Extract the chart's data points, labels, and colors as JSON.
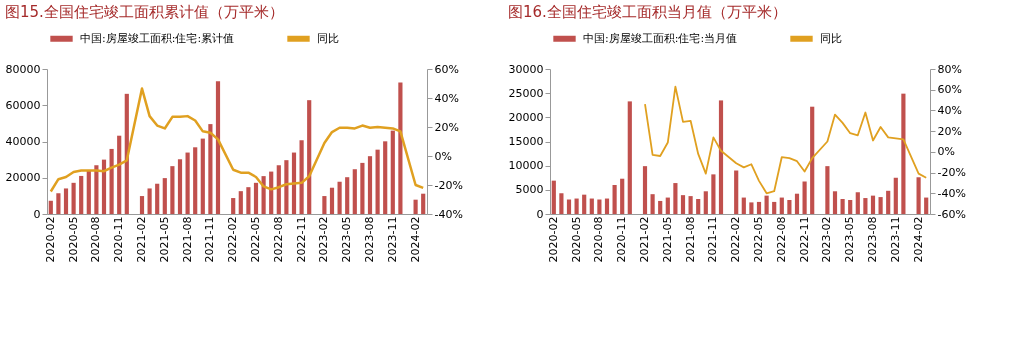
{
  "chart_data": [
    {
      "type": "bar",
      "title": "图15.全国住宅竣工面积累计值（万平米）",
      "categories": [
        "2020-02",
        null,
        null,
        "2020-05",
        null,
        null,
        "2020-08",
        null,
        null,
        "2020-11",
        null,
        null,
        "2021-02",
        null,
        null,
        "2021-05",
        null,
        null,
        "2021-08",
        null,
        null,
        "2021-11",
        null,
        null,
        "2022-02",
        null,
        null,
        "2022-05",
        null,
        null,
        "2022-08",
        null,
        null,
        "2022-11",
        null,
        null,
        "2023-02",
        null,
        null,
        "2023-05",
        null,
        null,
        "2023-08",
        null,
        null,
        "2023-11",
        null,
        null,
        "2024-02",
        null
      ],
      "series": [
        {
          "name": "中国:房屋竣工面积:住宅:累计值",
          "color": "#c0504d",
          "values": [
            7300,
            11400,
            14100,
            17200,
            21000,
            23800,
            26900,
            30000,
            35900,
            43200,
            66300,
            null,
            9900,
            14100,
            16700,
            19800,
            26400,
            30200,
            33900,
            36800,
            41600,
            49600,
            73300,
            null,
            8800,
            12600,
            14800,
            17200,
            20900,
            23400,
            26900,
            29700,
            33900,
            40700,
            62800,
            null,
            9900,
            14500,
            17800,
            20300,
            24700,
            28200,
            31900,
            35500,
            40100,
            46000,
            72500,
            null,
            7900,
            11200
          ]
        },
        {
          "name": "同比",
          "type": "line",
          "axis": "y2",
          "color": "#e0a020",
          "values": [
            -24.5,
            -16,
            -14.5,
            -11,
            -10,
            -10,
            -10,
            -10.5,
            -8,
            -6,
            -3,
            null,
            46.5,
            27.5,
            21,
            19,
            27,
            27,
            27.5,
            24.5,
            17,
            16,
            11.5,
            null,
            -9.5,
            -11.5,
            -11.5,
            -14.5,
            -21,
            -23,
            -21.5,
            -19.5,
            -19,
            -18.5,
            -14,
            null,
            9,
            16.5,
            19.5,
            19.5,
            19,
            21,
            19.5,
            20,
            19.5,
            19,
            17,
            null,
            -20,
            -22
          ]
        }
      ],
      "ylim": [
        0,
        80000
      ],
      "yticks": [
        0,
        20000,
        40000,
        60000,
        80000
      ],
      "y2lim": [
        -40,
        60
      ],
      "y2ticks": [
        {
          "value": -40,
          "label": "-40%"
        },
        {
          "value": -20,
          "label": "-20%"
        },
        {
          "value": 0,
          "label": "0%"
        },
        {
          "value": 20,
          "label": "20%"
        },
        {
          "value": 40,
          "label": "40%"
        },
        {
          "value": 60,
          "label": "60%"
        }
      ],
      "legend": "top",
      "grid": false
    },
    {
      "type": "bar",
      "title": "图16.全国住宅竣工面积当月值（万平米）",
      "categories": [
        "2020-02",
        null,
        null,
        "2020-05",
        null,
        null,
        "2020-08",
        null,
        null,
        "2020-11",
        null,
        null,
        "2021-02",
        null,
        null,
        "2021-05",
        null,
        null,
        "2021-08",
        null,
        null,
        "2021-11",
        null,
        null,
        "2022-02",
        null,
        null,
        "2022-05",
        null,
        null,
        "2022-08",
        null,
        null,
        "2022-11",
        null,
        null,
        "2023-02",
        null,
        null,
        "2023-05",
        null,
        null,
        "2023-08",
        null,
        null,
        "2023-11",
        null,
        null,
        "2024-02",
        null
      ],
      "series": [
        {
          "name": "中国:房屋竣工面积:住宅:当月值",
          "color": "#c0504d",
          "values": [
            6900,
            4300,
            3000,
            3200,
            4000,
            3200,
            3000,
            3200,
            6000,
            7300,
            23300,
            null,
            9900,
            4100,
            2700,
            3400,
            6400,
            3900,
            3700,
            3100,
            4700,
            8200,
            23500,
            null,
            9000,
            3400,
            2400,
            2500,
            3800,
            2500,
            3400,
            2900,
            4200,
            6700,
            22200,
            null,
            9900,
            4700,
            3100,
            2900,
            4500,
            3300,
            3800,
            3500,
            4800,
            7500,
            24900,
            null,
            7600,
            3400
          ]
        },
        {
          "name": "同比",
          "type": "line",
          "axis": "y2",
          "color": "#e0a020",
          "values": [
            null,
            null,
            null,
            null,
            null,
            null,
            null,
            null,
            null,
            null,
            null,
            null,
            46,
            -3,
            -4,
            9,
            63,
            29,
            30,
            -2,
            -21,
            14,
            1,
            null,
            -11,
            -15,
            -12,
            -28,
            -40,
            -38,
            -5,
            -6,
            -9,
            -19,
            -6,
            null,
            10,
            36,
            28,
            18,
            16,
            38,
            11,
            24,
            14,
            13,
            12,
            null,
            -21,
            -25
          ]
        }
      ],
      "ylim": [
        0,
        30000
      ],
      "yticks": [
        0,
        5000,
        10000,
        15000,
        20000,
        25000,
        30000
      ],
      "y2lim": [
        -60,
        80
      ],
      "y2ticks": [
        {
          "value": -60,
          "label": "-60%"
        },
        {
          "value": -40,
          "label": "-40%"
        },
        {
          "value": -20,
          "label": "-20%"
        },
        {
          "value": 0,
          "label": "0%"
        },
        {
          "value": 20,
          "label": "20%"
        },
        {
          "value": 40,
          "label": "40%"
        },
        {
          "value": 60,
          "label": "60%"
        },
        {
          "value": 80,
          "label": "80%"
        }
      ],
      "legend": "top",
      "grid": false
    }
  ]
}
